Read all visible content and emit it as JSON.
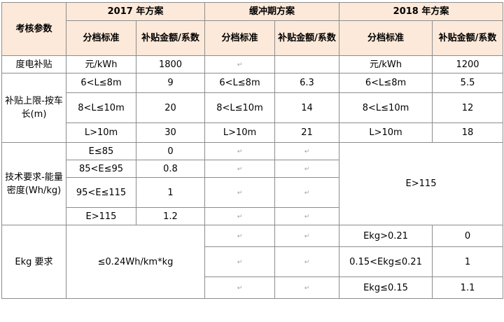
{
  "header": {
    "param": "考核参数",
    "scheme_2017": "2017 年方案",
    "scheme_buffer": "缓冲期方案",
    "scheme_2018": "2018 年方案",
    "grade_std": "分档标准",
    "subsidy_amount": "补贴金额/系数"
  },
  "rows": {
    "electric": {
      "label": "度电补贴",
      "std_2017": "元/kWh",
      "val_2017": "1800",
      "std_2018": "元/kWh",
      "val_2018": "1200"
    },
    "length": {
      "label": "补贴上限-按车长(m)",
      "s2017": [
        {
          "std": "6<L≤8m",
          "val": "9"
        },
        {
          "std": "8<L≤10m",
          "val": "20"
        },
        {
          "std": "L>10m",
          "val": "30"
        }
      ],
      "buffer": [
        {
          "std": "6<L≤8m",
          "val": "6.3"
        },
        {
          "std": "8<L≤10m",
          "val": "14"
        },
        {
          "std": "L>10m",
          "val": "21"
        }
      ],
      "s2018": [
        {
          "std": "6<L≤8m",
          "val": "5.5"
        },
        {
          "std": "8<L≤10m",
          "val": "12"
        },
        {
          "std": "L>10m",
          "val": "18"
        }
      ]
    },
    "tech": {
      "label": "技术要求-能量密度(Wh/kg)",
      "s2017": [
        {
          "std": "E≤85",
          "val": "0"
        },
        {
          "std": "85<E≤95",
          "val": "0.8"
        },
        {
          "std": "95<E≤115",
          "val": "1"
        },
        {
          "std": "E>115",
          "val": "1.2"
        }
      ],
      "s2018_std": "E>115"
    },
    "ekg": {
      "label": "Ekg 要求",
      "std_2017": "≤0.24Wh/km*kg",
      "s2018": [
        {
          "std": "Ekg>0.21",
          "val": "0"
        },
        {
          "std": "0.15<Ekg≤0.21",
          "val": "1"
        },
        {
          "std": "Ekg≤0.15",
          "val": "1.1"
        }
      ]
    }
  }
}
